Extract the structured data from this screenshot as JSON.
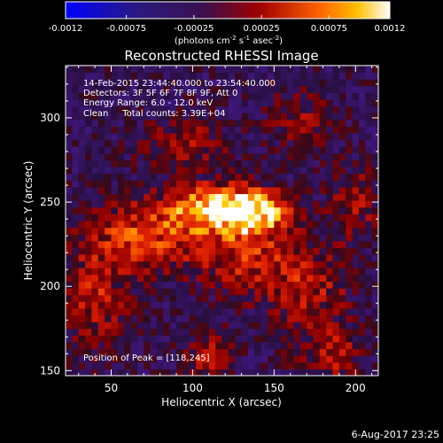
{
  "colorbar": {
    "ticks": [
      "-0.0012",
      "-0.00075",
      "-0.00025",
      "0.00025",
      "0.00075",
      "0.0012"
    ],
    "unit_label": "(photons cm",
    "unit_exp1": "-2",
    "unit_mid": " s",
    "unit_exp2": "-1",
    "unit_end": " asec",
    "unit_exp3": "-2",
    "unit_close": ")",
    "range": [
      -0.0012,
      0.0012
    ]
  },
  "footer": {
    "date": "6-Aug-2017 23:25"
  },
  "colors": {
    "bg": "#000000",
    "text": "#ffffff"
  },
  "chart_data": {
    "type": "heatmap",
    "title": "Reconstructed RHESSI Image",
    "xlabel": "Heliocentric X (arcsec)",
    "ylabel": "Heliocentric Y (arcsec)",
    "xlim": [
      22,
      214
    ],
    "ylim": [
      147,
      331
    ],
    "xticks": [
      "50",
      "100",
      "150",
      "200"
    ],
    "yticks": [
      "150",
      "200",
      "250",
      "300"
    ],
    "xtick_values": [
      50,
      100,
      150,
      200
    ],
    "ytick_values": [
      150,
      200,
      250,
      300
    ],
    "colormap": "hot (dark purple to red to yellow to white)",
    "annotations": [
      "14-Feb-2015 23:44:40.000 to 23:54:40.000",
      "Detectors: 3F 5F 6F 7F 8F 9F, Att 0",
      "Energy Range: 6.0 - 12.0 keV",
      "Clean     Total counts: 3.39E+04"
    ],
    "peak_label": "Position of Peak = [118,245]",
    "peak": [
      118,
      245
    ],
    "sources": [
      {
        "x": 118,
        "y": 246,
        "amp": 1.0,
        "sx": 20,
        "sy": 9
      },
      {
        "x": 140,
        "y": 243,
        "amp": 0.55,
        "sx": 12,
        "sy": 8
      },
      {
        "x": 70,
        "y": 230,
        "amp": 0.45,
        "sx": 22,
        "sy": 14
      },
      {
        "x": 130,
        "y": 220,
        "amp": 0.35,
        "sx": 20,
        "sy": 15
      },
      {
        "x": 170,
        "y": 200,
        "amp": 0.3,
        "sx": 18,
        "sy": 18
      },
      {
        "x": 185,
        "y": 160,
        "amp": 0.32,
        "sx": 12,
        "sy": 10
      },
      {
        "x": 110,
        "y": 158,
        "amp": 0.28,
        "sx": 10,
        "sy": 10
      },
      {
        "x": 40,
        "y": 195,
        "amp": 0.3,
        "sx": 14,
        "sy": 20
      },
      {
        "x": 200,
        "y": 250,
        "amp": 0.22,
        "sx": 12,
        "sy": 15
      },
      {
        "x": 95,
        "y": 285,
        "amp": 0.25,
        "sx": 18,
        "sy": 10
      },
      {
        "x": 165,
        "y": 300,
        "amp": 0.18,
        "sx": 15,
        "sy": 12
      }
    ]
  }
}
